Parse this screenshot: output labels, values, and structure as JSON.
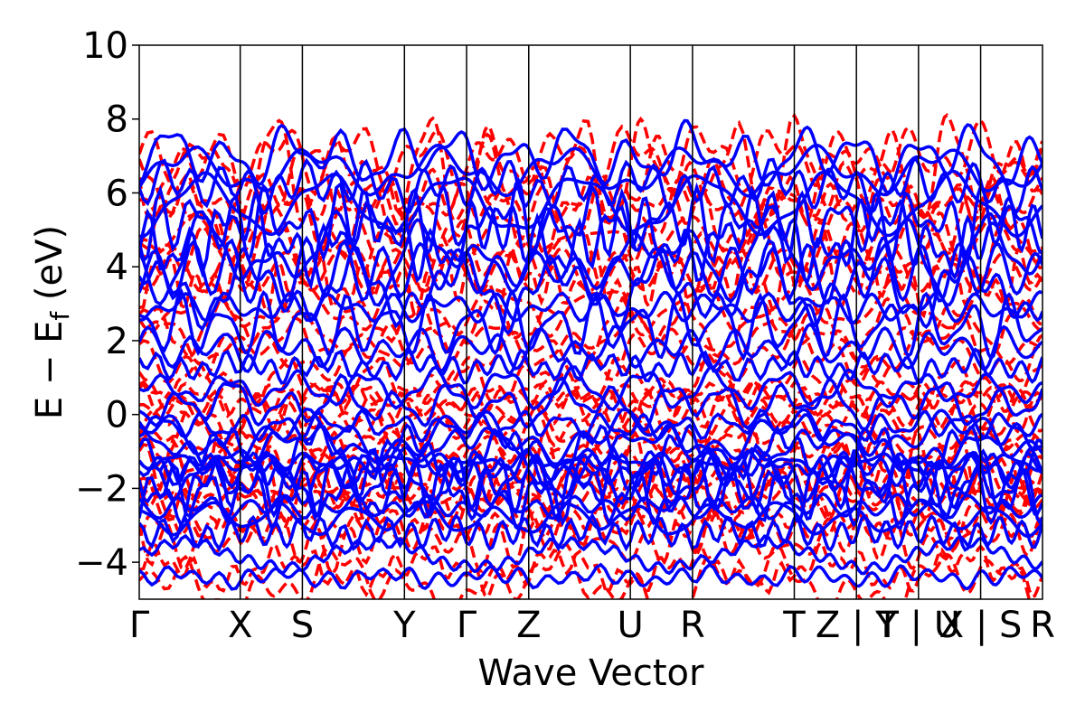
{
  "chart_data": {
    "type": "line",
    "title": "",
    "xlabel": "Wave Vector",
    "ylabel": "E − E_f (eV)",
    "ylabel_main": "E − E",
    "ylabel_sub": "f",
    "ylabel_tail": " (eV)",
    "ylim": [
      -5,
      10
    ],
    "yticks": [
      -4,
      -2,
      0,
      2,
      4,
      6,
      8,
      10
    ],
    "ytick_labels": [
      "−4",
      "−2",
      "0",
      "2",
      "4",
      "6",
      "8",
      "10"
    ],
    "xlim": [
      0,
      1
    ],
    "kpoints": [
      {
        "label": "Γ",
        "x": 0.0
      },
      {
        "label": "X",
        "x": 0.1118
      },
      {
        "label": "S",
        "x": 0.1806
      },
      {
        "label": "Y",
        "x": 0.2936
      },
      {
        "label": "Γ",
        "x": 0.3624
      },
      {
        "label": "Z",
        "x": 0.4312
      },
      {
        "label": "U",
        "x": 0.5437
      },
      {
        "label": "R",
        "x": 0.6125
      },
      {
        "label": "T",
        "x": 0.7252
      },
      {
        "label": "Z | Y",
        "x": 0.794
      },
      {
        "label": "T | U",
        "x": 0.8627
      },
      {
        "label": "X | S",
        "x": 0.9315
      },
      {
        "label": "R",
        "x": 1.0
      }
    ],
    "grid": false,
    "legend": "none",
    "series": [
      {
        "style": "solid",
        "color": "#0000ff"
      },
      {
        "style": "dashed",
        "color": "#ff0000"
      }
    ],
    "colors": {
      "solid": "#0000ff",
      "dashed": "#ff0000",
      "axes": "#000000"
    }
  }
}
